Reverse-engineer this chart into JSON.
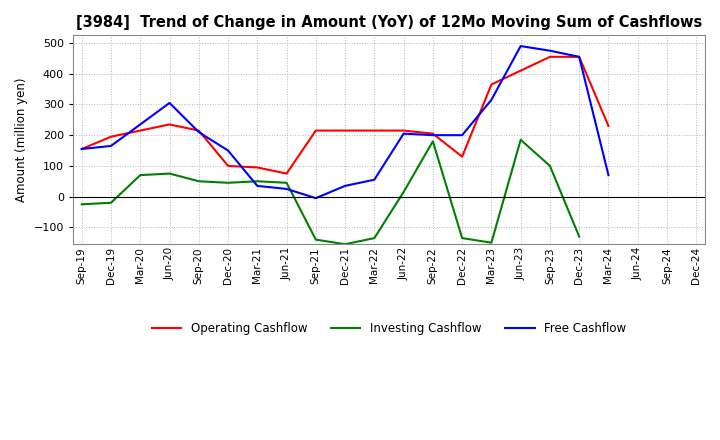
{
  "title": "[3984]  Trend of Change in Amount (YoY) of 12Mo Moving Sum of Cashflows",
  "ylabel": "Amount (million yen)",
  "x_labels": [
    "Sep-19",
    "Dec-19",
    "Mar-20",
    "Jun-20",
    "Sep-20",
    "Dec-20",
    "Mar-21",
    "Jun-21",
    "Sep-21",
    "Dec-21",
    "Mar-22",
    "Jun-22",
    "Sep-22",
    "Dec-22",
    "Mar-23",
    "Jun-23",
    "Sep-23",
    "Dec-23",
    "Mar-24",
    "Jun-24",
    "Sep-24",
    "Dec-24"
  ],
  "operating": [
    155,
    195,
    215,
    235,
    215,
    100,
    95,
    75,
    215,
    215,
    215,
    215,
    205,
    130,
    365,
    410,
    455,
    455,
    230,
    null,
    null,
    null
  ],
  "investing": [
    -25,
    -20,
    70,
    75,
    50,
    45,
    50,
    45,
    -140,
    -155,
    -135,
    15,
    180,
    -135,
    -150,
    185,
    100,
    -130,
    null,
    null,
    null,
    null
  ],
  "free": [
    155,
    165,
    235,
    305,
    210,
    150,
    35,
    25,
    -5,
    35,
    55,
    205,
    200,
    200,
    315,
    490,
    475,
    455,
    70,
    null,
    null,
    null
  ],
  "ylim": [
    -155,
    525
  ],
  "yticks": [
    -100,
    0,
    100,
    200,
    300,
    400,
    500
  ],
  "colors": {
    "operating": "#ff0000",
    "investing": "#008000",
    "free": "#0000ff"
  },
  "legend_labels": [
    "Operating Cashflow",
    "Investing Cashflow",
    "Free Cashflow"
  ],
  "background_color": "#ffffff",
  "grid_color": "#b0b0b0"
}
